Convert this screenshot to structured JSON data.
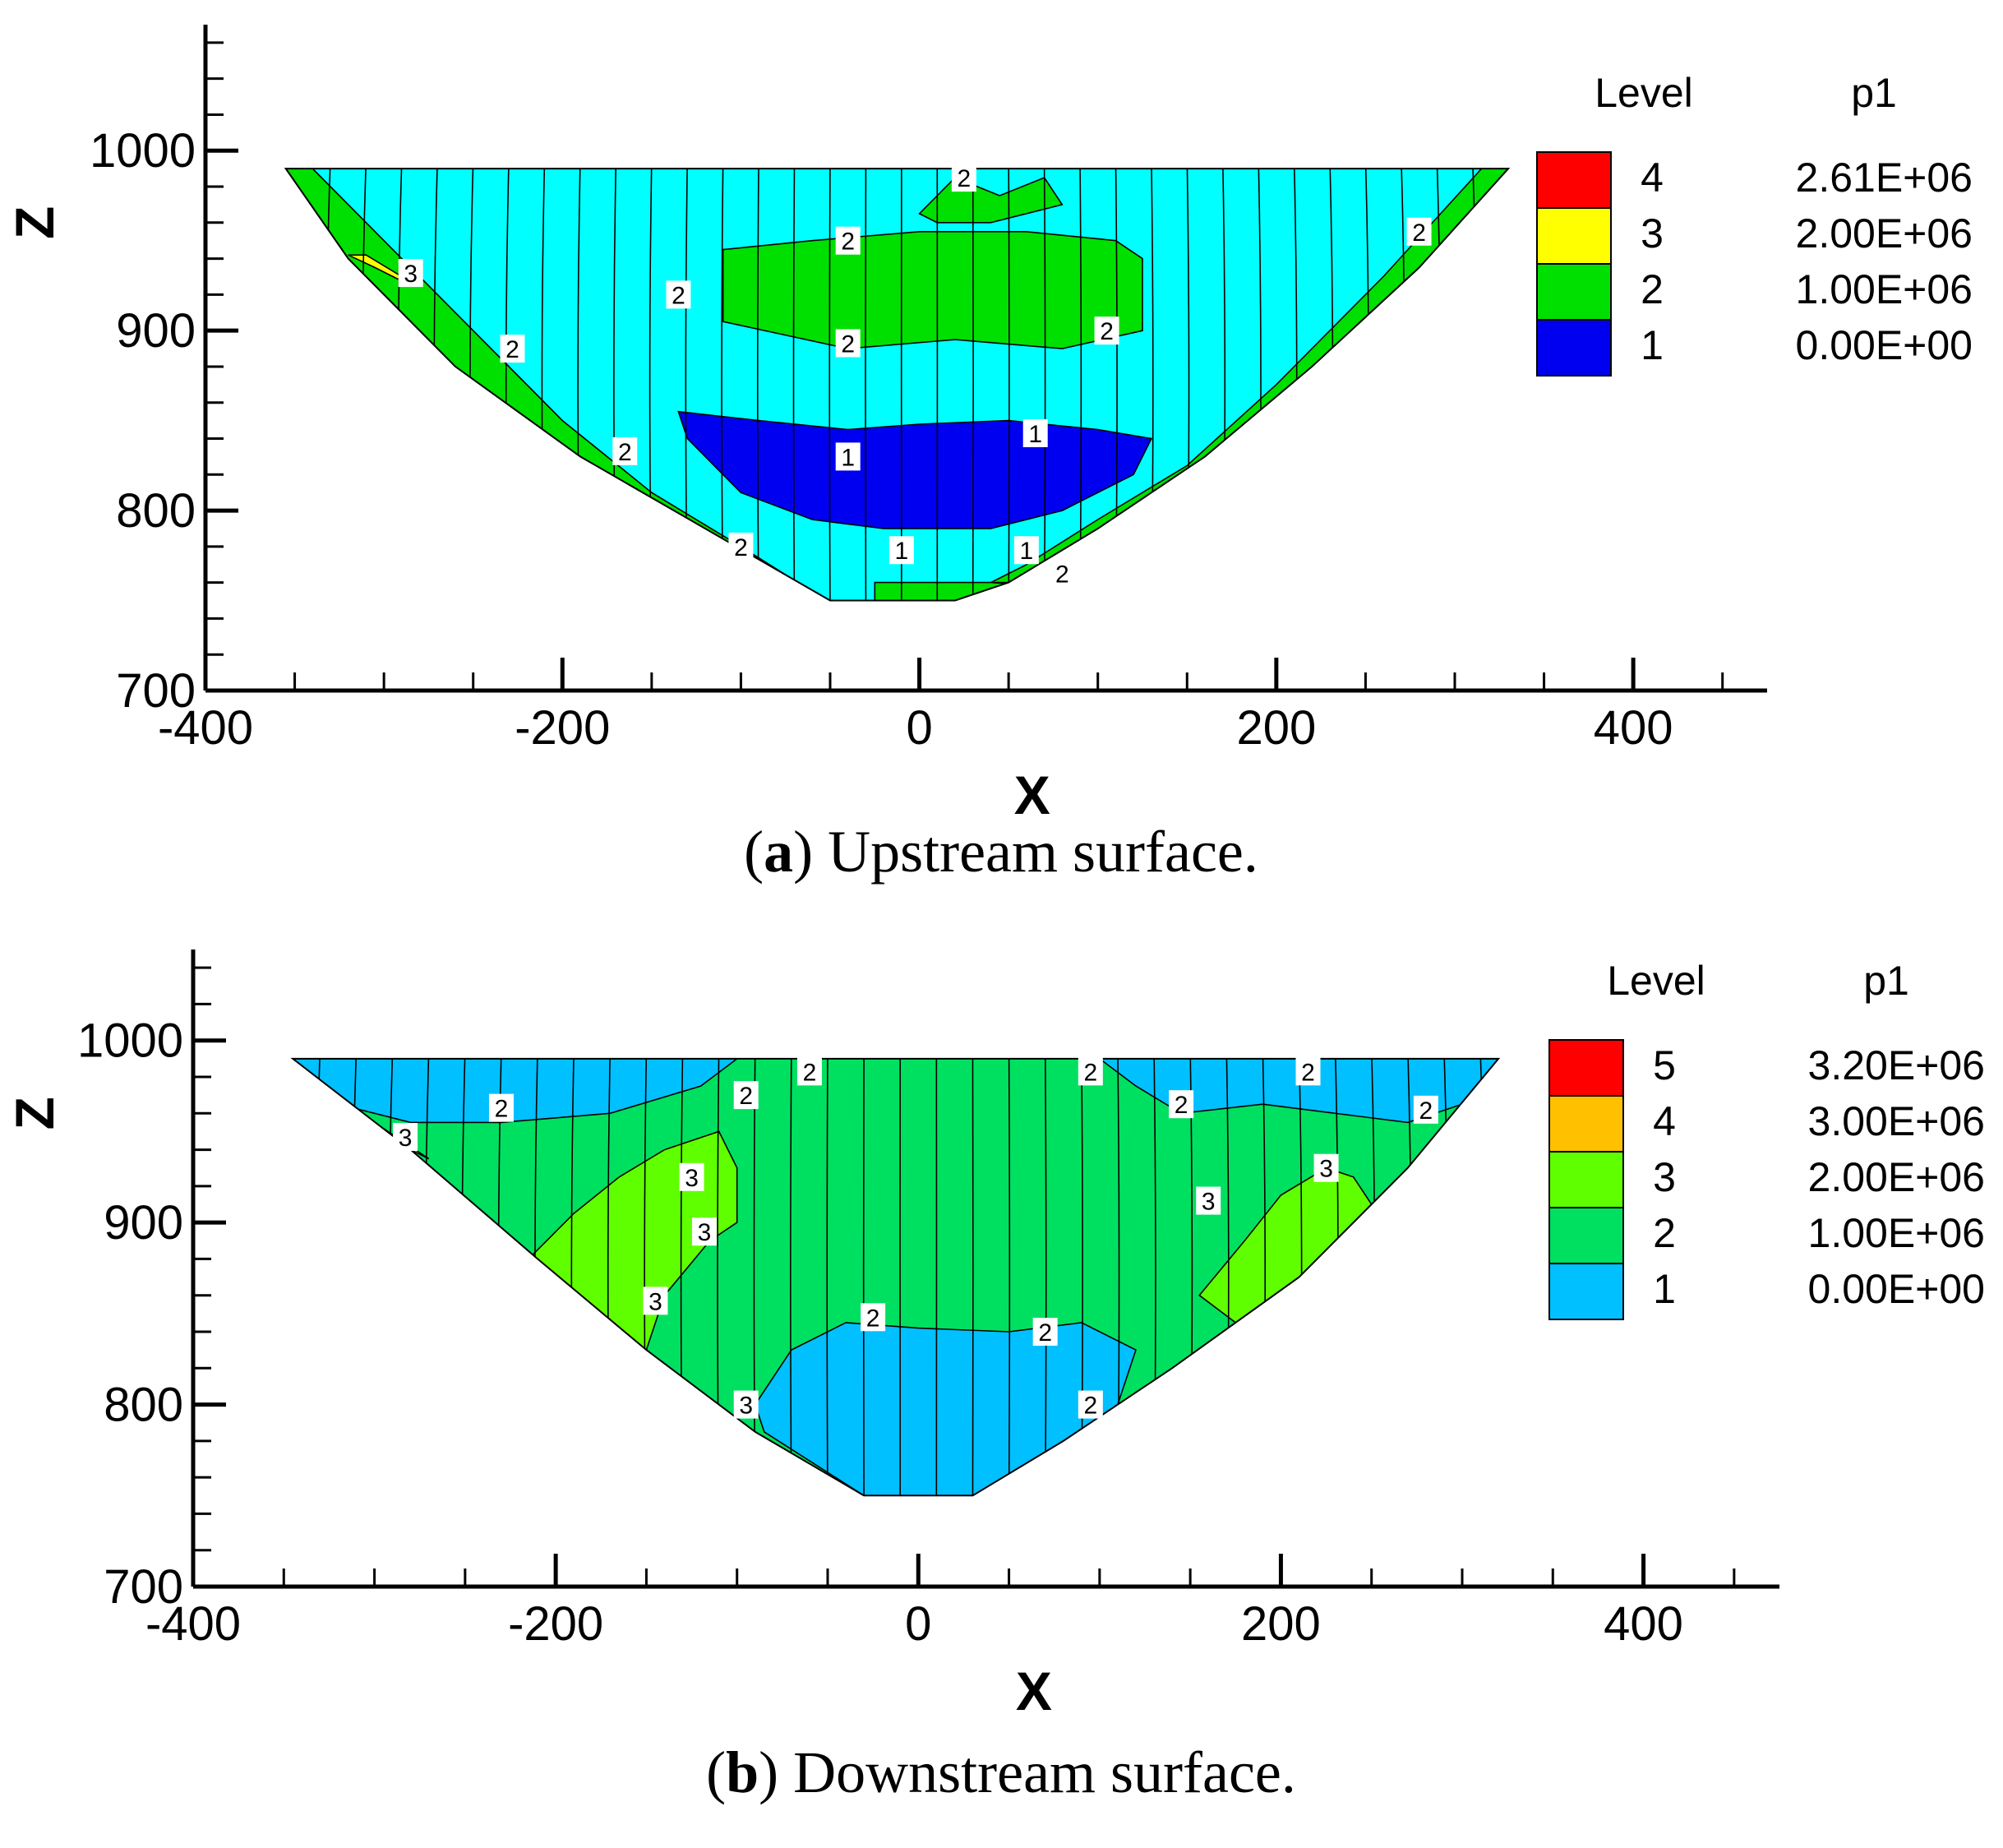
{
  "chart_data": [
    {
      "type": "contour",
      "id": "a",
      "caption_letter": "a",
      "caption_text": "Upstream surface.",
      "xlabel": "X",
      "ylabel": "Z",
      "xlim": [
        -400,
        475
      ],
      "ylim": [
        700,
        1070
      ],
      "xticks": [
        -400,
        -200,
        0,
        200,
        400
      ],
      "yticks": [
        700,
        800,
        900,
        1000
      ],
      "legend_title_level": "Level",
      "legend_title_var": "p1",
      "legend": [
        {
          "level": "4",
          "value": "2.61E+06",
          "color": "#ff0000"
        },
        {
          "level": "3",
          "value": "2.00E+06",
          "color": "#ffff00"
        },
        {
          "level": "2",
          "value": "1.00E+06",
          "color": "#00e000"
        },
        {
          "level": "1",
          "value": "0.00E+00",
          "color": "#0000f0"
        }
      ],
      "background_color": "#00ffff",
      "outline": [
        [
          -355,
          990
        ],
        [
          330,
          990
        ],
        [
          280,
          935
        ],
        [
          220,
          880
        ],
        [
          160,
          830
        ],
        [
          100,
          790
        ],
        [
          50,
          760
        ],
        [
          20,
          750
        ],
        [
          -50,
          750
        ],
        [
          -120,
          790
        ],
        [
          -190,
          830
        ],
        [
          -260,
          880
        ],
        [
          -320,
          940
        ]
      ],
      "regions": [
        {
          "color": "#00e000",
          "points": [
            [
              -355,
              990
            ],
            [
              -340,
              990
            ],
            [
              -300,
              950
            ],
            [
              -260,
              910
            ],
            [
              -200,
              850
            ],
            [
              -150,
              810
            ],
            [
              -100,
              780
            ],
            [
              -60,
              755
            ],
            [
              -50,
              750
            ],
            [
              -70,
              755
            ],
            [
              -120,
              790
            ],
            [
              -190,
              830
            ],
            [
              -260,
              880
            ],
            [
              -320,
              940
            ]
          ]
        },
        {
          "color": "#00e000",
          "points": [
            [
              330,
              990
            ],
            [
              315,
              990
            ],
            [
              260,
              930
            ],
            [
              200,
              870
            ],
            [
              150,
              825
            ],
            [
              100,
              795
            ],
            [
              60,
              770
            ],
            [
              40,
              760
            ],
            [
              50,
              760
            ],
            [
              100,
              790
            ],
            [
              160,
              830
            ],
            [
              220,
              880
            ],
            [
              280,
              935
            ]
          ]
        },
        {
          "color": "#00e000",
          "points": [
            [
              -110,
              945
            ],
            [
              -60,
              950
            ],
            [
              0,
              955
            ],
            [
              60,
              955
            ],
            [
              110,
              950
            ],
            [
              125,
              940
            ],
            [
              125,
              900
            ],
            [
              80,
              890
            ],
            [
              20,
              895
            ],
            [
              -40,
              890
            ],
            [
              -110,
              905
            ]
          ]
        },
        {
          "color": "#00e000",
          "points": [
            [
              0,
              965
            ],
            [
              20,
              985
            ],
            [
              45,
              975
            ],
            [
              70,
              985
            ],
            [
              80,
              970
            ],
            [
              40,
              960
            ],
            [
              10,
              960
            ]
          ]
        },
        {
          "color": "#00e000",
          "points": [
            [
              -25,
              750
            ],
            [
              40,
              750
            ],
            [
              70,
              758
            ],
            [
              40,
              760
            ],
            [
              -25,
              760
            ]
          ]
        },
        {
          "color": "#ffff00",
          "points": [
            [
              -320,
              942
            ],
            [
              -305,
              935
            ],
            [
              -285,
              925
            ],
            [
              -290,
              930
            ],
            [
              -310,
              942
            ]
          ]
        },
        {
          "color": "#0000f0",
          "points": [
            [
              -135,
              855
            ],
            [
              -90,
              850
            ],
            [
              -40,
              845
            ],
            [
              0,
              848
            ],
            [
              50,
              850
            ],
            [
              100,
              845
            ],
            [
              130,
              840
            ],
            [
              120,
              820
            ],
            [
              80,
              800
            ],
            [
              40,
              790
            ],
            [
              -20,
              790
            ],
            [
              -60,
              795
            ],
            [
              -100,
              810
            ],
            [
              -130,
              840
            ]
          ]
        }
      ],
      "grid_x_lines": [
        -330,
        -310,
        -290,
        -270,
        -250,
        -230,
        -210,
        -190,
        -170,
        -150,
        -130,
        -110,
        -90,
        -70,
        -50,
        -30,
        -10,
        10,
        30,
        50,
        70,
        90,
        110,
        130,
        150,
        170,
        190,
        210,
        230,
        250,
        270,
        290,
        310
      ],
      "contour_labels": [
        {
          "x": 25,
          "y": 985,
          "text": "2"
        },
        {
          "x": -40,
          "y": 950,
          "text": "2"
        },
        {
          "x": 280,
          "y": 955,
          "text": "2"
        },
        {
          "x": -135,
          "y": 920,
          "text": "2"
        },
        {
          "x": 105,
          "y": 900,
          "text": "2"
        },
        {
          "x": -40,
          "y": 893,
          "text": "2"
        },
        {
          "x": -228,
          "y": 890,
          "text": "2"
        },
        {
          "x": -285,
          "y": 932,
          "text": "3"
        },
        {
          "x": -165,
          "y": 833,
          "text": "2"
        },
        {
          "x": -40,
          "y": 830,
          "text": "1"
        },
        {
          "x": 65,
          "y": 843,
          "text": "1"
        },
        {
          "x": -100,
          "y": 780,
          "text": "2"
        },
        {
          "x": -10,
          "y": 778,
          "text": "1"
        },
        {
          "x": 60,
          "y": 778,
          "text": "1"
        },
        {
          "x": 80,
          "y": 765,
          "text": "2"
        }
      ]
    },
    {
      "type": "contour",
      "id": "b",
      "caption_letter": "b",
      "caption_text": "Downstream surface.",
      "xlabel": "X",
      "ylabel": "Z",
      "xlim": [
        -400,
        475
      ],
      "ylim": [
        700,
        1050
      ],
      "xticks": [
        -400,
        -200,
        0,
        200,
        400
      ],
      "yticks": [
        700,
        800,
        900,
        1000
      ],
      "legend_title_level": "Level",
      "legend_title_var": "p1",
      "legend": [
        {
          "level": "5",
          "value": "3.20E+06",
          "color": "#ff0000"
        },
        {
          "level": "4",
          "value": "3.00E+06",
          "color": "#ffc000"
        },
        {
          "level": "3",
          "value": "2.00E+06",
          "color": "#60ff00"
        },
        {
          "level": "2",
          "value": "1.00E+06",
          "color": "#00e060"
        },
        {
          "level": "1",
          "value": "0.00E+00",
          "color": "#00c0ff"
        }
      ],
      "background_color": "#00e060",
      "outline": [
        [
          -345,
          990
        ],
        [
          320,
          990
        ],
        [
          270,
          930
        ],
        [
          210,
          870
        ],
        [
          140,
          820
        ],
        [
          80,
          780
        ],
        [
          30,
          750
        ],
        [
          -30,
          750
        ],
        [
          -90,
          785
        ],
        [
          -150,
          830
        ],
        [
          -210,
          880
        ],
        [
          -280,
          940
        ]
      ],
      "regions": [
        {
          "color": "#00c0ff",
          "points": [
            [
              -345,
              990
            ],
            [
              -100,
              990
            ],
            [
              -120,
              975
            ],
            [
              -170,
              960
            ],
            [
              -230,
              955
            ],
            [
              -280,
              955
            ],
            [
              -320,
              965
            ]
          ]
        },
        {
          "color": "#00c0ff",
          "points": [
            [
              320,
              990
            ],
            [
              100,
              990
            ],
            [
              120,
              975
            ],
            [
              145,
              960
            ],
            [
              190,
              965
            ],
            [
              230,
              960
            ],
            [
              270,
              955
            ],
            [
              300,
              965
            ]
          ]
        },
        {
          "color": "#00c0ff",
          "points": [
            [
              -30,
              750
            ],
            [
              30,
              750
            ],
            [
              80,
              780
            ],
            [
              110,
              800
            ],
            [
              120,
              830
            ],
            [
              90,
              845
            ],
            [
              50,
              840
            ],
            [
              0,
              842
            ],
            [
              -40,
              845
            ],
            [
              -70,
              830
            ],
            [
              -90,
              800
            ],
            [
              -85,
              785
            ]
          ]
        },
        {
          "color": "#60ff00",
          "points": [
            [
              -215,
              880
            ],
            [
              -190,
              905
            ],
            [
              -165,
              925
            ],
            [
              -140,
              940
            ],
            [
              -110,
              950
            ],
            [
              -100,
              930
            ],
            [
              -100,
              900
            ],
            [
              -115,
              890
            ],
            [
              -140,
              860
            ],
            [
              -150,
              830
            ]
          ]
        },
        {
          "color": "#60ff00",
          "points": [
            [
              155,
              860
            ],
            [
              180,
              890
            ],
            [
              200,
              915
            ],
            [
              225,
              930
            ],
            [
              240,
              925
            ],
            [
              250,
              910
            ],
            [
              210,
              870
            ],
            [
              175,
              845
            ]
          ]
        },
        {
          "color": "#ffc000",
          "points": [
            [
              -300,
              955
            ],
            [
              -285,
              945
            ],
            [
              -270,
              935
            ],
            [
              -280,
              940
            ]
          ]
        }
      ],
      "grid_x_lines": [
        -330,
        -310,
        -290,
        -270,
        -250,
        -230,
        -210,
        -190,
        -170,
        -150,
        -130,
        -110,
        -90,
        -70,
        -50,
        -30,
        -10,
        10,
        30,
        50,
        70,
        90,
        110,
        130,
        150,
        170,
        190,
        210,
        230,
        250,
        270,
        290,
        310
      ],
      "contour_labels": [
        {
          "x": -60,
          "y": 983,
          "text": "2"
        },
        {
          "x": 95,
          "y": 983,
          "text": "2"
        },
        {
          "x": 215,
          "y": 983,
          "text": "2"
        },
        {
          "x": -95,
          "y": 970,
          "text": "2"
        },
        {
          "x": -230,
          "y": 963,
          "text": "2"
        },
        {
          "x": 145,
          "y": 965,
          "text": "2"
        },
        {
          "x": 280,
          "y": 962,
          "text": "2"
        },
        {
          "x": -283,
          "y": 947,
          "text": "3"
        },
        {
          "x": -125,
          "y": 925,
          "text": "3"
        },
        {
          "x": 225,
          "y": 930,
          "text": "3"
        },
        {
          "x": 160,
          "y": 912,
          "text": "3"
        },
        {
          "x": -118,
          "y": 895,
          "text": "3"
        },
        {
          "x": -145,
          "y": 857,
          "text": "3"
        },
        {
          "x": -25,
          "y": 848,
          "text": "2"
        },
        {
          "x": 70,
          "y": 840,
          "text": "2"
        },
        {
          "x": -95,
          "y": 800,
          "text": "3"
        },
        {
          "x": 95,
          "y": 800,
          "text": "2"
        }
      ]
    }
  ]
}
